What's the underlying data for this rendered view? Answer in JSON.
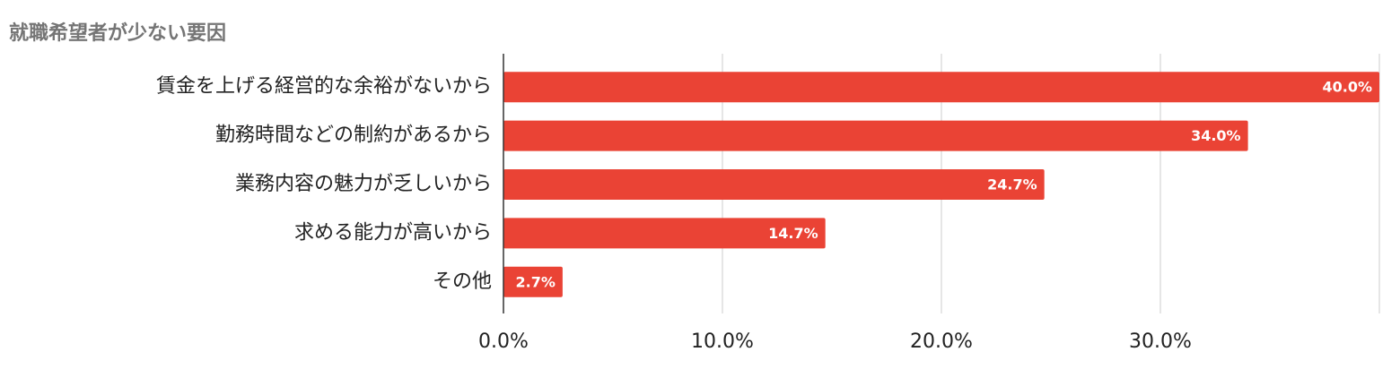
{
  "chart_data": {
    "type": "bar",
    "title": "就職希望者が少ない要因",
    "categories": [
      "賃金を上げる経営的な余裕がないから",
      "勤務時間などの制約があるから",
      "業務内容の魅力が乏しいから",
      "求める能力が高いから",
      "その他"
    ],
    "values": [
      40.0,
      34.0,
      24.7,
      14.7,
      2.7
    ],
    "value_labels": [
      "40.0%",
      "34.0%",
      "24.7%",
      "14.7%",
      "2.7%"
    ],
    "color": "#ea4335",
    "xlim": [
      0,
      40
    ],
    "xticks": [
      {
        "value": 0,
        "label": "0.0%"
      },
      {
        "value": 10,
        "label": "10.0%"
      },
      {
        "value": 20,
        "label": "20.0%"
      },
      {
        "value": 30,
        "label": "30.0%"
      }
    ],
    "grid": true
  }
}
